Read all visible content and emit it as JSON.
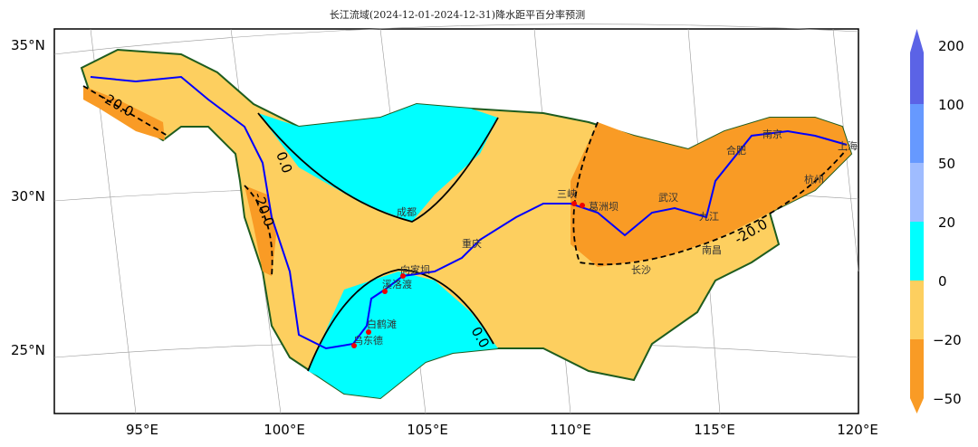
{
  "title": "长江流域(2024-12-01-2024-12-31)降水距平百分率预测",
  "axes": {
    "lat_ticks": [
      "35°N",
      "30°N",
      "25°N"
    ],
    "lon_ticks": [
      "95°E",
      "100°E",
      "105°E",
      "110°E",
      "115°E",
      "120°E"
    ]
  },
  "contour_labels": [
    "-20.0",
    "0.0",
    "-20.0",
    "0.0",
    "-20.0"
  ],
  "cities": [
    "成都",
    "重庆",
    "向家坝",
    "溪洛渡",
    "白鹤滩",
    "乌东德",
    "三峡",
    "葛洲坝",
    "武汉",
    "九江",
    "南昌",
    "长沙",
    "合肥",
    "南京",
    "杭州",
    "上海"
  ],
  "colorbar": {
    "ticks": [
      "200",
      "100",
      "50",
      "20",
      "0",
      "−20",
      "−50"
    ],
    "colors": [
      "#5b63e6",
      "#6699ff",
      "#9fbcff",
      "#00ffff",
      "#fdcf5f",
      "#f99b25"
    ]
  },
  "legend_colors": {
    "river": "#0000ff",
    "boundary": "#1e5c1e",
    "contour": "#000000"
  }
}
